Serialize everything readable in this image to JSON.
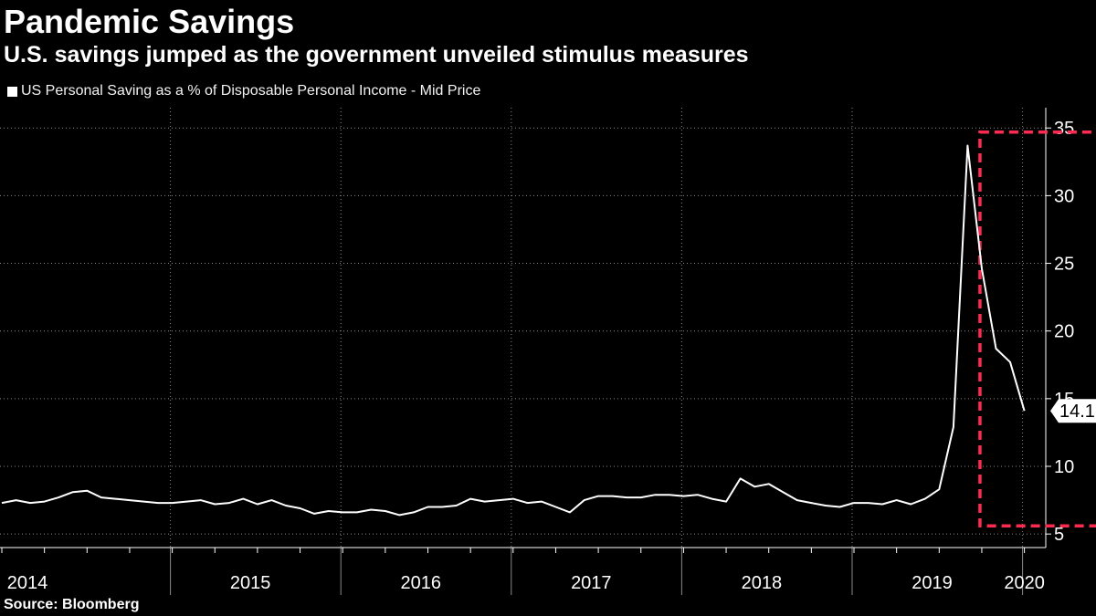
{
  "chart_data": {
    "type": "line",
    "title": "Pandemic Savings",
    "subtitle": "U.S. savings jumped as the government unveiled stimulus measures",
    "source": "Source: Bloomberg",
    "series": [
      {
        "name": "US Personal Saving as a % of Disposable Personal Income - Mid Price",
        "color": "#ffffff",
        "start": "2014-01",
        "values": [
          7.3,
          7.5,
          7.3,
          7.4,
          7.7,
          8.1,
          8.2,
          7.7,
          7.6,
          7.5,
          7.4,
          7.3,
          7.3,
          7.4,
          7.5,
          7.2,
          7.3,
          7.6,
          7.2,
          7.5,
          7.1,
          6.9,
          6.5,
          6.7,
          6.6,
          6.6,
          6.8,
          6.7,
          6.4,
          6.6,
          7.0,
          7.0,
          7.1,
          7.6,
          7.4,
          7.5,
          7.6,
          7.3,
          7.4,
          7.0,
          6.6,
          7.5,
          7.8,
          7.8,
          7.7,
          7.7,
          7.9,
          7.9,
          7.8,
          7.9,
          7.6,
          7.4,
          9.1,
          8.5,
          8.7,
          8.1,
          7.5,
          7.3,
          7.1,
          7.0,
          7.3,
          7.3,
          7.2,
          7.5,
          7.2,
          7.6,
          8.3,
          12.9,
          33.7,
          24.6,
          18.7,
          17.7,
          14.1
        ]
      }
    ],
    "last_value_label": "14.1",
    "x_tick_labels": [
      "2014",
      "2015",
      "2016",
      "2017",
      "2018",
      "2019",
      "2020"
    ],
    "y_ticks": [
      5,
      10,
      15,
      20,
      25,
      30,
      35
    ],
    "ylim": [
      4.0,
      36.5
    ],
    "xlabel": "",
    "ylabel": "",
    "grid": true,
    "legend_position": "top-left",
    "highlight": {
      "start": "2019-10",
      "end": "2020-09",
      "y_low": 5.6,
      "y_high": 34.7,
      "color": "#ff2a4f",
      "style": "dashed"
    }
  },
  "colors": {
    "background": "#000000",
    "text": "#ffffff",
    "grid": "#8a8a8a",
    "axis": "#ffffff",
    "highlight": "#ff2a4f"
  }
}
